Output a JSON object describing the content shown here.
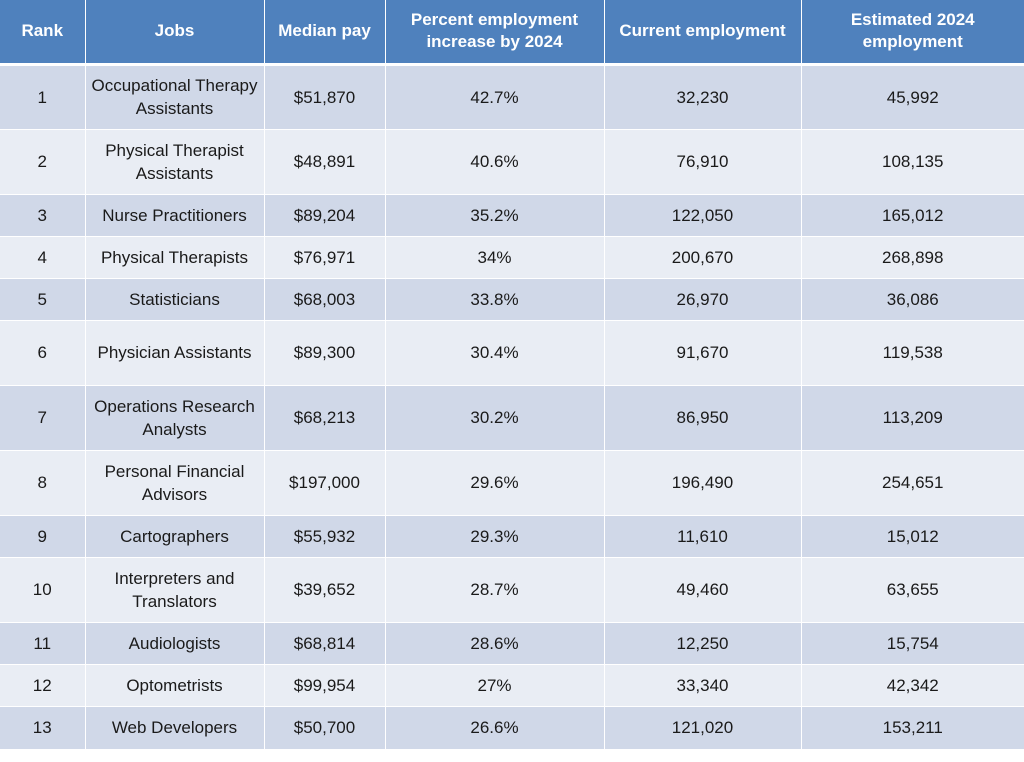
{
  "headers": {
    "rank": "Rank",
    "jobs": "Jobs",
    "pay": "Median pay",
    "pct": "Percent employment increase by 2024",
    "current": "Current employment",
    "estimated": "Estimated 2024 employment"
  },
  "rows": [
    {
      "rank": "1",
      "job": "Occupational Therapy Assistants",
      "pay": "$51,870",
      "pct": "42.7%",
      "current": "32,230",
      "estimated": "45,992"
    },
    {
      "rank": "2",
      "job": "Physical Therapist Assistants",
      "pay": "$48,891",
      "pct": "40.6%",
      "current": "76,910",
      "estimated": "108,135"
    },
    {
      "rank": "3",
      "job": "Nurse Practitioners",
      "pay": "$89,204",
      "pct": "35.2%",
      "current": "122,050",
      "estimated": "165,012"
    },
    {
      "rank": "4",
      "job": "Physical Therapists",
      "pay": "$76,971",
      "pct": "34%",
      "current": "200,670",
      "estimated": "268,898"
    },
    {
      "rank": "5",
      "job": "Statisticians",
      "pay": "$68,003",
      "pct": "33.8%",
      "current": "26,970",
      "estimated": "36,086"
    },
    {
      "rank": "6",
      "job": "Physician Assistants",
      "pay": "$89,300",
      "pct": "30.4%",
      "current": "91,670",
      "estimated": "119,538"
    },
    {
      "rank": "7",
      "job": "Operations Research Analysts",
      "pay": "$68,213",
      "pct": "30.2%",
      "current": "86,950",
      "estimated": "113,209"
    },
    {
      "rank": "8",
      "job": "Personal Financial Advisors",
      "pay": "$197,000",
      "pct": "29.6%",
      "current": "196,490",
      "estimated": "254,651"
    },
    {
      "rank": "9",
      "job": "Cartographers",
      "pay": "$55,932",
      "pct": "29.3%",
      "current": "11,610",
      "estimated": "15,012"
    },
    {
      "rank": "10",
      "job": "Interpreters and Translators",
      "pay": "$39,652",
      "pct": "28.7%",
      "current": "49,460",
      "estimated": "63,655"
    },
    {
      "rank": "11",
      "job": "Audiologists",
      "pay": "$68,814",
      "pct": "28.6%",
      "current": "12,250",
      "estimated": "15,754"
    },
    {
      "rank": "12",
      "job": "Optometrists",
      "pay": "$99,954",
      "pct": "27%",
      "current": "33,340",
      "estimated": "42,342"
    },
    {
      "rank": "13",
      "job": "Web Developers",
      "pay": "$50,700",
      "pct": "26.6%",
      "current": "121,020",
      "estimated": "153,211"
    }
  ]
}
